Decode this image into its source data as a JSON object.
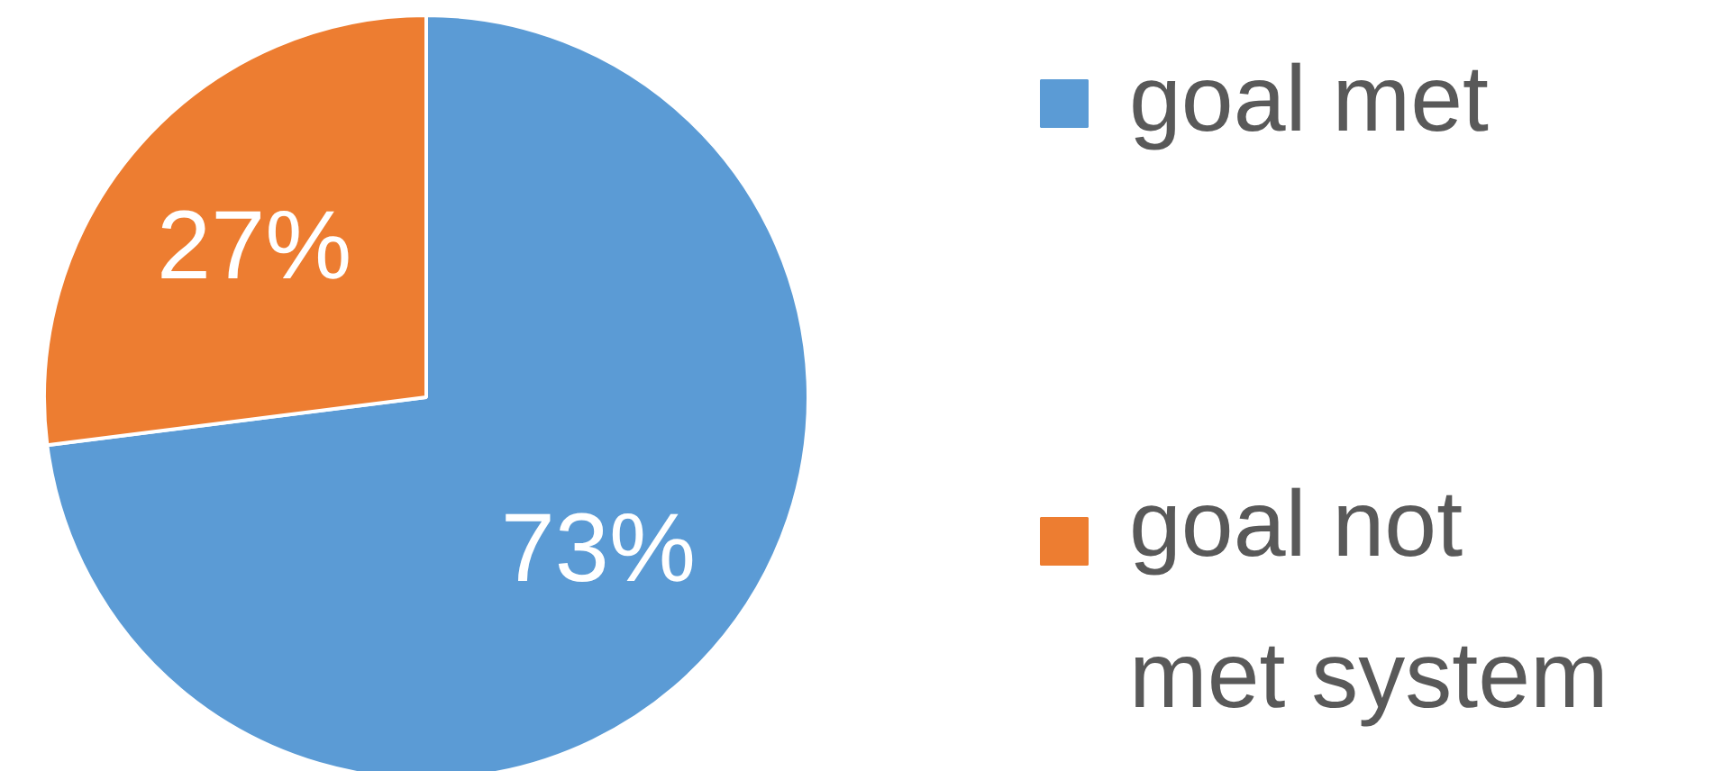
{
  "chart_data": {
    "type": "pie",
    "categories": [
      "goal met",
      "goal not met system"
    ],
    "values": [
      73,
      27
    ],
    "colors": [
      "#5b9bd5",
      "#ed7d31"
    ],
    "value_labels": [
      "73%",
      "27%"
    ],
    "legend": "right"
  }
}
